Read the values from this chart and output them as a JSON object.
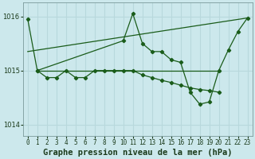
{
  "title": "Graphe pression niveau de la mer (hPa)",
  "background_color": "#cce8ec",
  "grid_color": "#b8d8dc",
  "line_color": "#1a5c1a",
  "ylim": [
    1013.8,
    1016.25
  ],
  "xlim": [
    -0.5,
    23.5
  ],
  "yticks": [
    1014,
    1015,
    1016
  ],
  "xticks": [
    0,
    1,
    2,
    3,
    4,
    5,
    6,
    7,
    8,
    9,
    10,
    11,
    12,
    13,
    14,
    15,
    16,
    17,
    18,
    19,
    20,
    21,
    22,
    23
  ],
  "title_fontsize": 7.5,
  "tick_fontsize": 6.0,
  "series_volatile": {
    "x": [
      0,
      1,
      10,
      11,
      12,
      13,
      14,
      15,
      16,
      17,
      18,
      19,
      20,
      21,
      22,
      23
    ],
    "y": [
      1015.95,
      1015.0,
      1015.55,
      1016.05,
      1015.5,
      1015.35,
      1015.35,
      1015.2,
      1015.15,
      1014.6,
      1014.38,
      1014.42,
      1015.0,
      1015.38,
      1015.72,
      1015.97
    ]
  },
  "series_diagonal": {
    "x": [
      0,
      23
    ],
    "y": [
      1015.35,
      1015.97
    ]
  },
  "series_bumpy": {
    "x": [
      1,
      2,
      3,
      4,
      5,
      6,
      7,
      8,
      9,
      10,
      11,
      12,
      13,
      14,
      15,
      16,
      17,
      18,
      19,
      20
    ],
    "y": [
      1015.0,
      1014.87,
      1014.87,
      1015.0,
      1014.87,
      1014.87,
      1015.0,
      1015.0,
      1015.0,
      1015.0,
      1015.0,
      1014.92,
      1014.87,
      1014.82,
      1014.78,
      1014.73,
      1014.68,
      1014.65,
      1014.63,
      1014.6
    ]
  },
  "series_horizontal": {
    "x": [
      1,
      20
    ],
    "y": [
      1015.0,
      1015.0
    ]
  }
}
